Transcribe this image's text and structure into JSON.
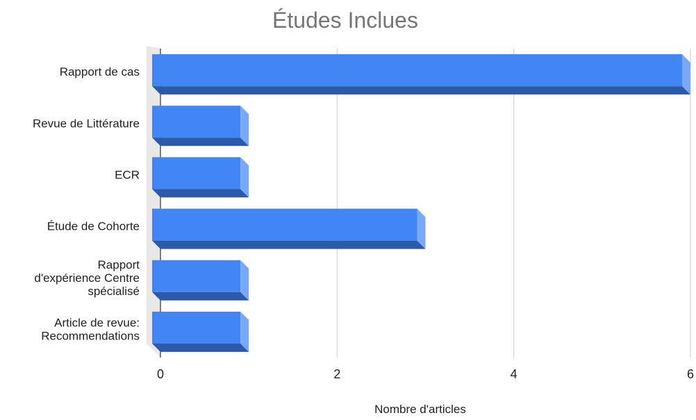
{
  "chart_data": {
    "type": "bar",
    "orientation": "horizontal",
    "style": "3d",
    "title": "Études Inclues",
    "xlabel": "Nombre d'articles",
    "ylabel": "",
    "categories": [
      "Rapport de cas",
      "Revue de Littérature",
      "ECR",
      "Étude de Cohorte",
      "Rapport d'expérience Centre spécialisé",
      "Article de revue: Recommendations"
    ],
    "category_label_lines": [
      [
        "Rapport de cas"
      ],
      [
        "Revue de Littérature"
      ],
      [
        "ECR"
      ],
      [
        "Étude de Cohorte"
      ],
      [
        "Rapport",
        "d'expérience Centre",
        "spécialisé"
      ],
      [
        "Article de revue:",
        "Recommendations"
      ]
    ],
    "values": [
      6,
      1,
      1,
      3,
      1,
      1
    ],
    "xlim": [
      0,
      6
    ],
    "xticks": [
      0,
      2,
      4,
      6
    ],
    "grid": true,
    "legend": "none",
    "colors": {
      "bar_front": "#4285f4",
      "bar_bottom": "#2d5aa8",
      "bar_side": "#7aa7f7",
      "title": "#757575",
      "text": "#222222",
      "grid": "#cccccc",
      "floor": "#e8e8e8"
    }
  }
}
